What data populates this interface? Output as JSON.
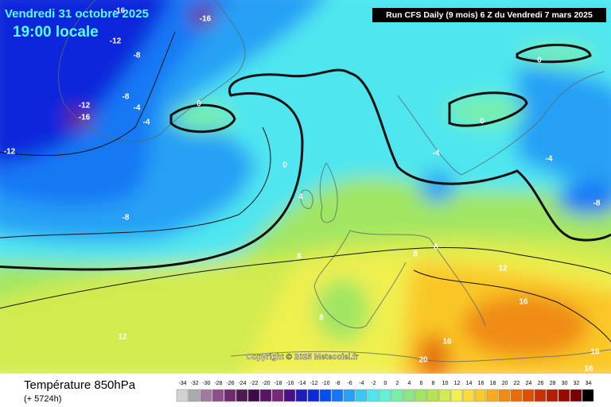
{
  "header": {
    "date": "Vendredi 31 octobre 2025",
    "time": "19:00 locale",
    "run": "Run CFS Daily (9 mois) 6 Z du Vendredi 7 mars 2025"
  },
  "copyright": "Copyright © 2025 Meteociel.fr",
  "footer": {
    "title": "Température 850hPa",
    "subtitle": "(+ 5724h)"
  },
  "contour_labels": [
    "-16",
    "-16",
    "-12",
    "-8",
    "-8",
    "-4",
    "-12",
    "-16",
    "-12",
    "-4",
    "0",
    "0",
    "0",
    "0",
    "4",
    "-4",
    "-4",
    "-8",
    "-8",
    "8",
    "8",
    "8",
    "12",
    "16",
    "8",
    "12",
    "16",
    "16",
    "16",
    "20"
  ],
  "legend": {
    "values": [
      -34,
      -32,
      -30,
      -28,
      -26,
      -24,
      -22,
      -20,
      -18,
      -16,
      -14,
      -12,
      -10,
      -8,
      -6,
      -4,
      -2,
      0,
      2,
      4,
      6,
      8,
      10,
      12,
      14,
      16,
      18,
      20,
      22,
      24,
      26,
      28,
      30,
      32,
      34
    ],
    "colors": [
      "#d2d2d2",
      "#aaaaaa",
      "#a07aa0",
      "#8c4e8c",
      "#6e2c6e",
      "#501a50",
      "#3c0a46",
      "#5a1464",
      "#782878",
      "#4b0f87",
      "#1e1eb4",
      "#0a28dc",
      "#0050f0",
      "#1478f5",
      "#28a0f5",
      "#3cc8f5",
      "#50e6f0",
      "#64f0d2",
      "#78f0aa",
      "#8ce682",
      "#a0e664",
      "#b4e650",
      "#d2eb50",
      "#f0f050",
      "#fadc3c",
      "#fac828",
      "#faaa1e",
      "#f08c14",
      "#e66e0a",
      "#dc5000",
      "#c83200",
      "#b41e00",
      "#960a00",
      "#780000",
      "#000000"
    ]
  }
}
